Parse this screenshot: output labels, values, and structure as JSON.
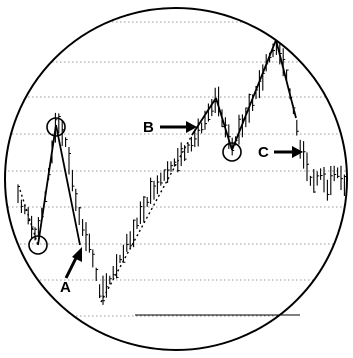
{
  "chart_data": {
    "type": "line",
    "title": "",
    "xlabel": "",
    "ylabel": "",
    "grid": true,
    "labels": {
      "a": "A",
      "b": "B",
      "c": "C"
    }
  }
}
